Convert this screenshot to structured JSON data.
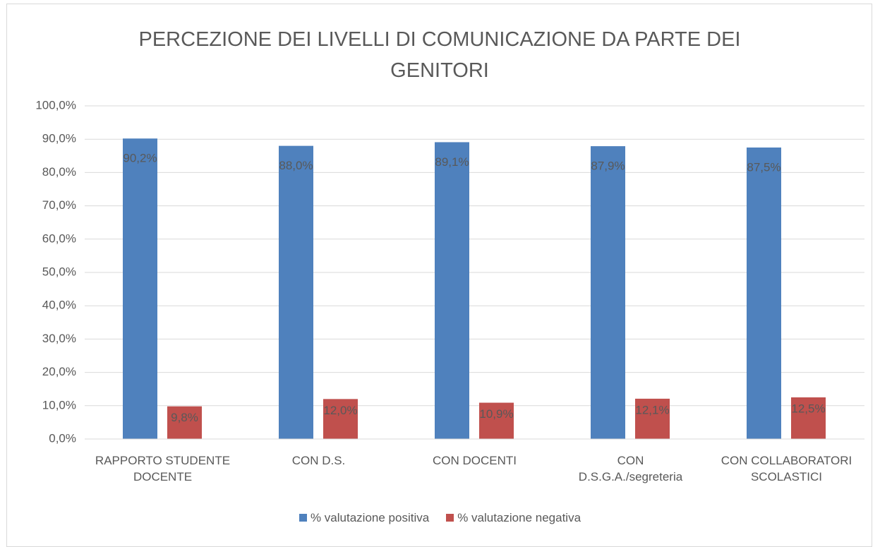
{
  "chart_data": {
    "type": "bar",
    "title": "PERCEZIONE DEI LIVELLI DI COMUNICAZIONE DA PARTE DEI GENITORI",
    "categories": [
      "RAPPORTO STUDENTE\nDOCENTE",
      "CON D.S.",
      "CON DOCENTI",
      "CON\nD.S.G.A./segreteria",
      "CON COLLABORATORI\nSCOLASTICI"
    ],
    "series": [
      {
        "name": "% valutazione positiva",
        "color": "#4f81bd",
        "values": [
          90.2,
          88.0,
          89.1,
          87.9,
          87.5
        ],
        "value_labels": [
          "90,2%",
          "88,0%",
          "89,1%",
          "87,9%",
          "87,5%"
        ]
      },
      {
        "name": "% valutazione negativa",
        "color": "#c0504d",
        "values": [
          9.8,
          12.0,
          10.9,
          12.1,
          12.5
        ],
        "value_labels": [
          "9,8%",
          "12,0%",
          "10,9%",
          "12,1%",
          "12,5%"
        ]
      }
    ],
    "ylim": [
      0,
      100
    ],
    "yticks": [
      {
        "value": 0,
        "label": "0,0%"
      },
      {
        "value": 10,
        "label": "10,0%"
      },
      {
        "value": 20,
        "label": "20,0%"
      },
      {
        "value": 30,
        "label": "30,0%"
      },
      {
        "value": 40,
        "label": "40,0%"
      },
      {
        "value": 50,
        "label": "50,0%"
      },
      {
        "value": 60,
        "label": "60,0%"
      },
      {
        "value": 70,
        "label": "70,0%"
      },
      {
        "value": 80,
        "label": "80,0%"
      },
      {
        "value": 90,
        "label": "90,0%"
      },
      {
        "value": 100,
        "label": "100,0%"
      }
    ],
    "grid": true,
    "legend": "bottom"
  }
}
